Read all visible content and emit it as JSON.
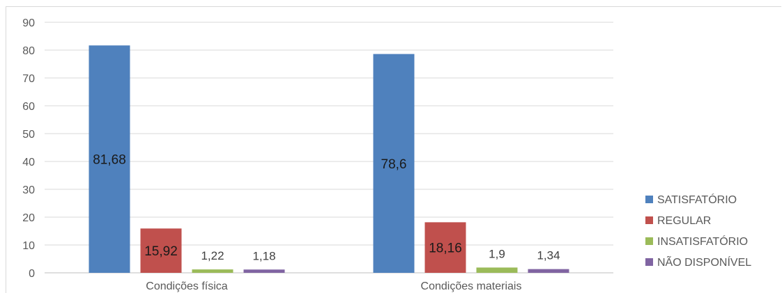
{
  "chart_data": {
    "type": "bar",
    "title": "",
    "xlabel": "",
    "ylabel": "",
    "ylim": [
      0,
      90
    ],
    "yticks": [
      0,
      10,
      20,
      30,
      40,
      50,
      60,
      70,
      80,
      90
    ],
    "grid": true,
    "legend_position": "right",
    "categories": [
      "Condições física",
      "Condições materiais"
    ],
    "series": [
      {
        "name": "SATISFATÓRIO",
        "color": "#4f81bd",
        "values": [
          81.68,
          78.6
        ],
        "labels": [
          "81,68",
          "78,6"
        ]
      },
      {
        "name": "REGULAR",
        "color": "#c0504d",
        "values": [
          15.92,
          18.16
        ],
        "labels": [
          "15,92",
          "18,16"
        ]
      },
      {
        "name": "INSATISFATÓRIO",
        "color": "#9bbb59",
        "values": [
          1.22,
          1.9
        ],
        "labels": [
          "1,22",
          "1,9"
        ]
      },
      {
        "name": "NÃO DISPONÍVEL",
        "color": "#8064a2",
        "values": [
          1.18,
          1.34
        ],
        "labels": [
          "1,18",
          "1,34"
        ]
      }
    ]
  }
}
